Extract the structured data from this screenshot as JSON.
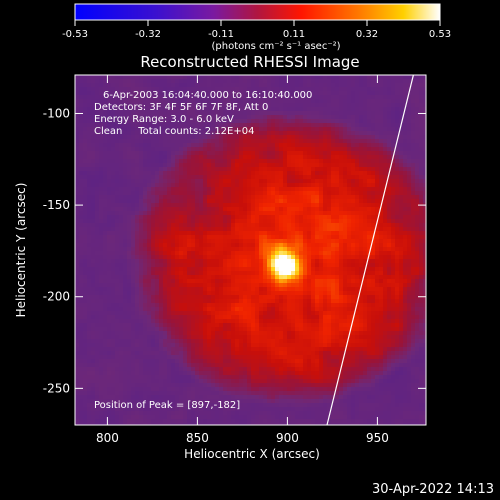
{
  "chart_data": {
    "type": "heatmap",
    "title": "Reconstructed RHESSI Image",
    "xlabel": "Heliocentric X (arcsec)",
    "ylabel": "Heliocentric Y (arcsec)",
    "xlim": [
      782,
      977
    ],
    "ylim": [
      -270,
      -79
    ],
    "xticks": [
      800,
      850,
      900,
      950
    ],
    "yticks": [
      -100,
      -150,
      -200,
      -250
    ],
    "colorbar": {
      "min": -0.53,
      "max": 0.53,
      "ticks": [
        "-0.53",
        "-0.32",
        "-0.11",
        "0.11",
        "0.32",
        "0.53"
      ],
      "unit_label": "(photons cm⁻² s⁻¹ asec⁻²)"
    },
    "annotations": [
      "6-Apr-2003 16:04:40.000 to 16:10:40.000",
      "Detectors: 3F 4F 5F 6F 7F 8F, Att 0",
      "Energy Range: 3.0 - 6.0 keV",
      "Clean     Total counts: 2.12E+04"
    ],
    "peak_label": "Position of Peak = [897,-182]",
    "peak": [
      897,
      -182
    ],
    "limb_x_top": 970,
    "limb_x_bottom": 922
  },
  "timestamp": "30-Apr-2022 14:13",
  "colors": {
    "background": "#000000",
    "colormap": [
      "#0000ff",
      "#6a1fb0",
      "#b51a3a",
      "#ff1a00",
      "#ff7a00",
      "#ffd400",
      "#ffffff"
    ]
  }
}
